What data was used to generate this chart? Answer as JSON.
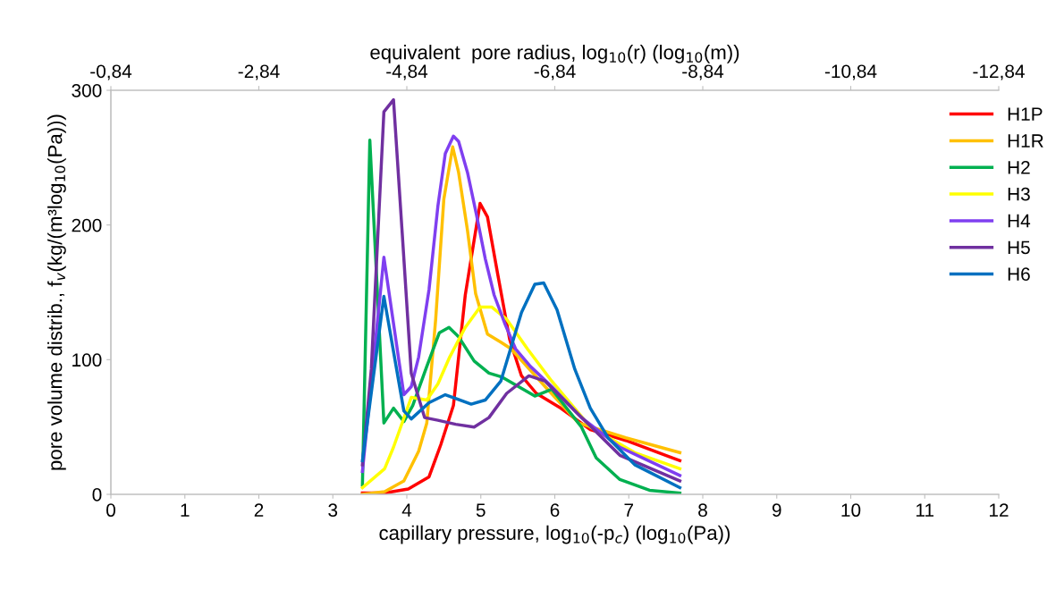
{
  "chart_data": {
    "type": "line",
    "xlabel": "capillary pressure, log$_{10}$(-p$_{c}$) (log$_{10}$(Pa))",
    "ylabel": "pore volume distrib., f$_{v}$(kg/(m³log$_{10}$(Pa)))",
    "x2label": "equivalent  pore radius, log$_{10}$(r) (log$_{10}$(m))",
    "xlim": [
      0,
      12
    ],
    "xticks": [
      0,
      1,
      2,
      3,
      4,
      5,
      6,
      7,
      8,
      9,
      10,
      11,
      12
    ],
    "ylim": [
      0,
      300
    ],
    "yticks": [
      0,
      100,
      200,
      300
    ],
    "x2lim": [
      -0.84,
      -12.84
    ],
    "x2ticks": [
      {
        "value": -0.84,
        "label": "-0,84"
      },
      {
        "value": -2.84,
        "label": "-2,84"
      },
      {
        "value": -4.84,
        "label": "-4,84"
      },
      {
        "value": -6.84,
        "label": "-6,84"
      },
      {
        "value": -8.84,
        "label": "-8,84"
      },
      {
        "value": -10.84,
        "label": "-10,84"
      },
      {
        "value": -12.84,
        "label": "-12,84"
      }
    ],
    "grid": false,
    "legend": "top right",
    "marker": "none",
    "line_style": "solid",
    "series": [
      {
        "name": "H1P",
        "color": "#ff0000",
        "x": [
          3.4,
          3.7,
          4.02,
          4.3,
          4.46,
          4.63,
          4.79,
          4.99,
          5.09,
          5.23,
          5.39,
          5.55,
          5.75,
          6.08,
          6.48,
          6.96,
          7.69
        ],
        "values": [
          1,
          1,
          4,
          13,
          37,
          66,
          148,
          216,
          206,
          163,
          115,
          88,
          75,
          64,
          48,
          40,
          25
        ]
      },
      {
        "name": "H1R",
        "color": "#ffc000",
        "x": [
          3.4,
          3.7,
          3.96,
          4.16,
          4.27,
          4.39,
          4.5,
          4.62,
          4.7,
          4.82,
          4.93,
          5.09,
          5.27,
          5.41,
          5.87,
          6.32,
          6.96,
          7.69
        ],
        "values": [
          0,
          2,
          10,
          32,
          53,
          130,
          219,
          258,
          239,
          196,
          149,
          119,
          113,
          108,
          80,
          53,
          42,
          31
        ]
      },
      {
        "name": "H2",
        "color": "#00b050",
        "x": [
          3.4,
          3.5,
          3.69,
          3.82,
          3.96,
          4.08,
          4.27,
          4.44,
          4.57,
          4.7,
          4.91,
          5.11,
          5.29,
          5.51,
          5.73,
          5.96,
          6.36,
          6.56,
          6.88,
          7.28,
          7.69
        ],
        "values": [
          7,
          263,
          53,
          64,
          54,
          66,
          95,
          120,
          124,
          117,
          99,
          90,
          87,
          80,
          73,
          78,
          50,
          27,
          11,
          3,
          1
        ]
      },
      {
        "name": "H3",
        "color": "#ffff00",
        "x": [
          3.4,
          3.7,
          3.82,
          4.06,
          4.27,
          4.42,
          4.58,
          4.79,
          4.99,
          5.15,
          5.35,
          5.63,
          5.96,
          6.48,
          7.08,
          7.69
        ],
        "values": [
          5,
          19,
          35,
          72,
          70,
          82,
          102,
          124,
          139,
          139,
          130,
          108,
          84,
          50,
          31,
          19
        ]
      },
      {
        "name": "H4",
        "color": "#7f3ff0",
        "x": [
          3.4,
          3.69,
          3.96,
          4.06,
          4.16,
          4.3,
          4.42,
          4.52,
          4.63,
          4.7,
          4.82,
          4.94,
          5.06,
          5.18,
          5.33,
          5.47,
          5.67,
          5.96,
          6.36,
          6.88,
          7.69
        ],
        "values": [
          17,
          176,
          74,
          80,
          102,
          152,
          214,
          253,
          266,
          262,
          239,
          208,
          175,
          148,
          126,
          108,
          95,
          80,
          57,
          35,
          14
        ]
      },
      {
        "name": "H5",
        "color": "#7030a0",
        "x": [
          3.4,
          3.52,
          3.69,
          3.82,
          3.94,
          4.06,
          4.24,
          4.42,
          4.66,
          4.91,
          5.11,
          5.35,
          5.65,
          5.87,
          6.27,
          6.88,
          7.69
        ],
        "values": [
          22,
          93,
          284,
          293,
          192,
          90,
          57,
          55,
          52,
          50,
          57,
          75,
          88,
          84,
          62,
          29,
          10
        ]
      },
      {
        "name": "H6",
        "color": "#0070c0",
        "x": [
          3.4,
          3.69,
          3.96,
          4.06,
          4.3,
          4.52,
          4.87,
          5.06,
          5.27,
          5.55,
          5.73,
          5.85,
          6.03,
          6.27,
          6.48,
          6.72,
          7.08,
          7.69
        ],
        "values": [
          25,
          147,
          62,
          56,
          68,
          74,
          67,
          70,
          84,
          135,
          156,
          157,
          137,
          93,
          64,
          42,
          22,
          5
        ]
      }
    ]
  }
}
